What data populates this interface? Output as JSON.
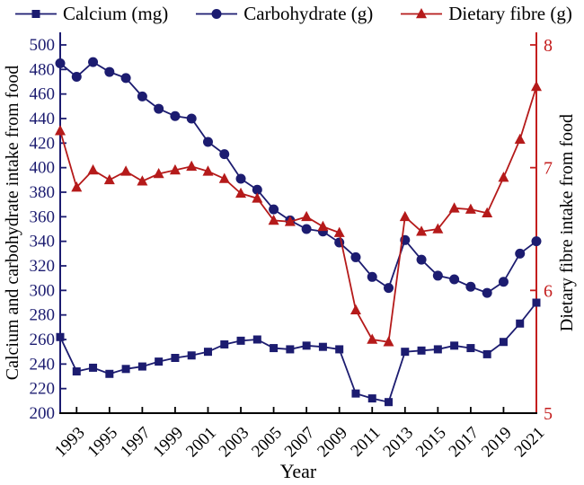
{
  "chart_data": {
    "type": "line",
    "xlabel": "Year",
    "x": [
      1992,
      1993,
      1994,
      1995,
      1996,
      1997,
      1998,
      1999,
      2000,
      2001,
      2002,
      2003,
      2004,
      2005,
      2006,
      2007,
      2008,
      2009,
      2010,
      2011,
      2012,
      2013,
      2014,
      2015,
      2016,
      2017,
      2018,
      2019,
      2020,
      2021
    ],
    "x_ticks": [
      1993,
      1995,
      1997,
      1999,
      2001,
      2003,
      2005,
      2007,
      2009,
      2011,
      2013,
      2015,
      2017,
      2019,
      2021
    ],
    "left_axis": {
      "label": "Calcium and carbohydrate intake from food",
      "min": 200,
      "max": 500,
      "tick_step": 20,
      "tick_color": "#1c1c70",
      "label_color": "#000000"
    },
    "right_axis": {
      "label": "Dietary fibre intake from food",
      "min": 5,
      "max": 8,
      "tick_step": 1,
      "tick_color": "#c41e1e",
      "label_color": "#000000"
    },
    "grid": false,
    "legend_position": "top",
    "series": [
      {
        "name": "Calcium (mg)",
        "axis": "left",
        "marker": "square",
        "color": "#1c1c70",
        "values": [
          262,
          234,
          237,
          232,
          236,
          238,
          242,
          245,
          247,
          250,
          256,
          259,
          260,
          253,
          252,
          255,
          254,
          252,
          216,
          212,
          209,
          250,
          251,
          252,
          255,
          253,
          248,
          258,
          273,
          290
        ]
      },
      {
        "name": "Carbohydrate (g)",
        "axis": "left",
        "marker": "circle",
        "color": "#1c1c70",
        "values": [
          485,
          474,
          486,
          478,
          473,
          458,
          448,
          442,
          440,
          421,
          411,
          391,
          382,
          366,
          357,
          350,
          348,
          339,
          327,
          311,
          302,
          341,
          325,
          312,
          309,
          303,
          298,
          307,
          330,
          340
        ]
      },
      {
        "name": "Dietary fibre (g)",
        "axis": "right",
        "marker": "triangle",
        "color": "#b51a1a",
        "values": [
          7.3,
          6.84,
          6.98,
          6.9,
          6.97,
          6.89,
          6.95,
          6.98,
          7.01,
          6.97,
          6.91,
          6.79,
          6.75,
          6.57,
          6.56,
          6.6,
          6.52,
          6.47,
          5.84,
          5.6,
          5.58,
          6.6,
          6.48,
          6.5,
          6.67,
          6.66,
          6.63,
          6.92,
          7.23,
          7.66
        ]
      }
    ]
  }
}
